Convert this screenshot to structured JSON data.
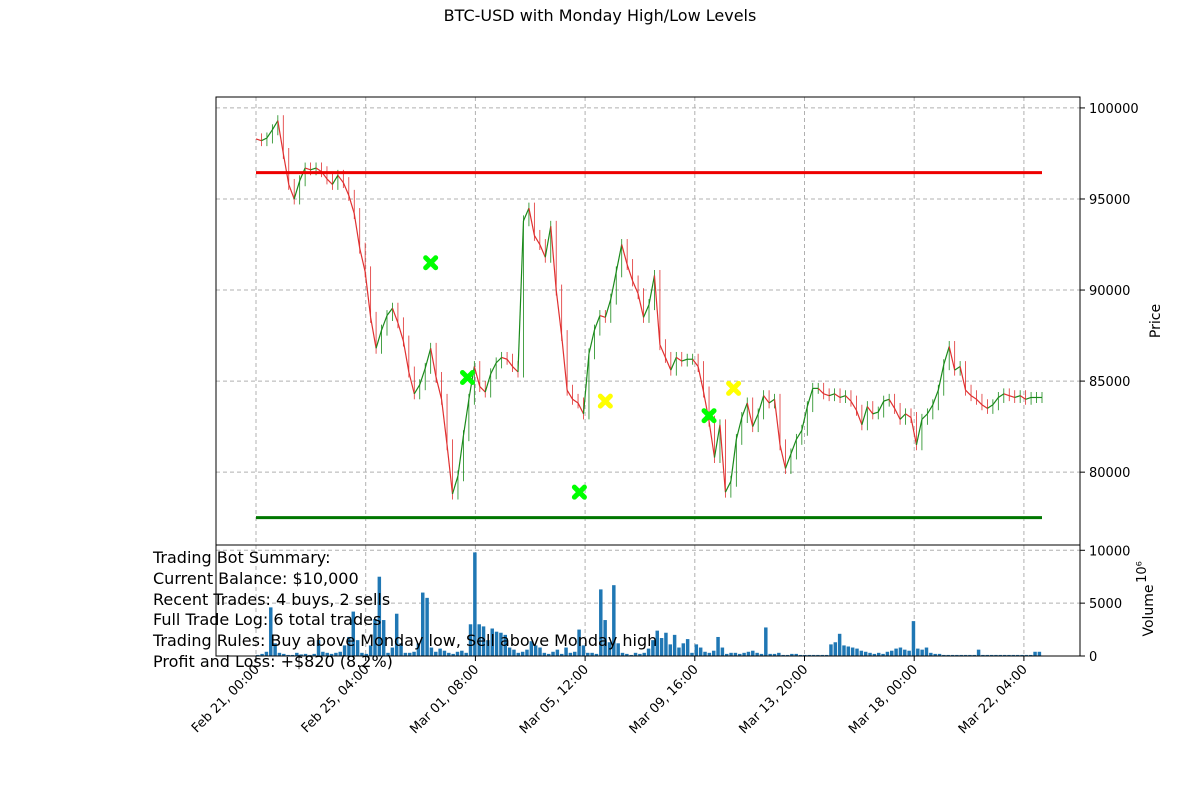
{
  "chart_data": {
    "type": "candlestick",
    "title": "BTC-USD with Monday High/Low Levels",
    "x_tick_labels": [
      "Feb 21, 00:00",
      "Feb 25, 04:00",
      "Mar 01, 08:00",
      "Mar 05, 12:00",
      "Mar 09, 16:00",
      "Mar 13, 20:00",
      "Mar 18, 00:00",
      "Mar 22, 04:00"
    ],
    "price_panel": {
      "ylabel": "Price",
      "ylim": [
        76000,
        100600
      ],
      "yticks": [
        80000,
        85000,
        90000,
        95000,
        100000
      ],
      "grid": true,
      "series": [
        {
          "x": [
            0,
            0.2,
            0.4,
            0.6,
            0.8,
            1.0,
            1.2,
            1.4,
            1.6,
            1.8,
            2.0,
            2.2,
            2.4,
            2.6,
            2.8,
            3.0,
            3.2,
            3.4,
            3.6,
            3.8,
            4.0,
            4.2,
            4.4,
            4.6,
            4.8,
            5.0,
            5.2,
            5.4,
            5.6,
            5.8,
            6.0,
            6.2,
            6.4,
            6.6,
            6.8,
            7.0,
            7.2,
            7.4,
            7.6,
            7.8,
            8.0,
            8.2,
            8.4,
            8.6,
            8.8,
            9.0,
            9.2,
            9.4,
            9.6,
            9.8,
            10.0,
            10.2,
            10.4,
            10.6,
            10.8,
            11.0,
            11.2,
            11.4,
            11.6,
            11.8,
            12.0,
            12.2,
            12.4,
            12.6,
            12.8,
            13.0,
            13.2,
            13.4,
            13.6,
            13.8,
            14.0,
            14.2,
            14.4,
            14.6,
            14.8,
            15.0,
            15.2,
            15.4,
            15.6,
            15.8,
            16.0,
            16.2,
            16.4,
            16.6,
            16.8,
            17.0,
            17.2,
            17.4,
            17.6,
            17.8,
            18.0,
            18.2,
            18.4,
            18.6,
            18.8,
            19.0,
            19.2,
            19.4,
            19.6,
            19.8,
            20.0,
            20.2,
            20.4,
            20.6,
            20.8,
            21.0,
            21.2,
            21.4,
            21.6,
            21.8,
            22.0,
            22.2,
            22.4,
            22.6,
            22.8,
            23.0,
            23.2,
            23.4,
            23.6,
            23.8,
            24.0,
            24.2,
            24.4,
            24.6,
            24.8,
            25.0,
            25.2,
            25.4,
            25.6,
            25.8,
            26.0,
            26.2,
            26.4,
            26.6,
            26.8,
            27.0,
            27.2,
            27.4,
            27.6,
            27.8,
            28.0,
            28.2,
            28.4,
            28.6,
            28.8
          ],
          "y": [
            98300,
            98200,
            98350,
            98800,
            99300,
            97500,
            95800,
            95000,
            96000,
            96700,
            96600,
            96700,
            96500,
            96100,
            95800,
            96300,
            95900,
            95200,
            94200,
            92300,
            91000,
            88500,
            86800,
            87800,
            88600,
            89000,
            88200,
            87200,
            85500,
            84300,
            84800,
            85700,
            86800,
            85200,
            84000,
            81500,
            78800,
            79800,
            82000,
            84000,
            85800,
            84700,
            84400,
            85400,
            86000,
            86300,
            86200,
            85800,
            85500,
            93800,
            94500,
            93000,
            92500,
            91800,
            93500,
            90000,
            87500,
            84500,
            84000,
            83800,
            83200,
            86500,
            87800,
            88600,
            88500,
            89500,
            91000,
            92500,
            91400,
            90500,
            89800,
            88500,
            89200,
            90800,
            87000,
            86300,
            85600,
            86300,
            86100,
            86200,
            86200,
            85800,
            84400,
            82800,
            80800,
            82600,
            78900,
            79500,
            81800,
            83000,
            83800,
            82500,
            83200,
            84200,
            83800,
            84000,
            81500,
            80200,
            81000,
            81800,
            82300,
            83600,
            84600,
            84600,
            84300,
            84200,
            84300,
            84100,
            84200,
            83900,
            83400,
            82600,
            83600,
            83200,
            83300,
            83900,
            84000,
            83500,
            82900,
            83200,
            83000,
            81500,
            82900,
            83200,
            83700,
            84500,
            85900,
            86900,
            85600,
            85800,
            84500,
            84200,
            84000,
            83700,
            83500,
            83700,
            84100,
            84300,
            84200,
            84100,
            84200,
            84000,
            84100,
            84100,
            84100
          ]
        }
      ],
      "hlines": [
        {
          "y": 96450,
          "color": "#ee0000",
          "label": "Monday High"
        },
        {
          "y": 77500,
          "color": "#007700",
          "label": "Monday Low"
        }
      ],
      "markers": {
        "buy": {
          "color": "#00ff00",
          "points": [
            {
              "x": 6.4,
              "y": 91500
            },
            {
              "x": 7.75,
              "y": 85200
            },
            {
              "x": 11.85,
              "y": 78900
            },
            {
              "x": 16.6,
              "y": 83100
            }
          ]
        },
        "sell": {
          "color": "#ffff00",
          "points": [
            {
              "x": 12.8,
              "y": 83900
            },
            {
              "x": 17.5,
              "y": 84600
            }
          ]
        }
      }
    },
    "volume_panel": {
      "ylabel": "Volume",
      "ylabel_exponent": "10⁶",
      "ylim": [
        0,
        10500
      ],
      "yticks": [
        0,
        5000,
        10000
      ],
      "grid": true,
      "bar_color": "#1f77b4",
      "values": [
        100,
        200,
        400,
        4600,
        1200,
        300,
        200,
        100,
        100,
        300,
        150,
        200,
        100,
        200,
        1500,
        400,
        300,
        200,
        300,
        400,
        1000,
        1800,
        4200,
        1500,
        300,
        200,
        1000,
        3500,
        7500,
        3400,
        300,
        800,
        4000,
        1200,
        300,
        300,
        400,
        1200,
        6000,
        5500,
        800,
        400,
        700,
        500,
        300,
        200,
        400,
        500,
        300,
        3000,
        9800,
        3000,
        2800,
        1500,
        2600,
        2300,
        2200,
        2000,
        800,
        600,
        300,
        400,
        600,
        1400,
        1000,
        800,
        300,
        200,
        400,
        600,
        200,
        800,
        300,
        400,
        2500,
        1000,
        300,
        300,
        200,
        6300,
        3400,
        1300,
        6700,
        1200,
        300,
        200,
        100,
        300,
        200,
        300,
        700,
        1500,
        2400,
        1700,
        2200,
        1100,
        2000,
        800,
        1200,
        1600,
        300,
        1100,
        800,
        400,
        300,
        500,
        1800,
        800,
        200,
        300,
        300,
        200,
        300,
        400,
        500,
        300,
        200,
        2700,
        200,
        200,
        300,
        100,
        100,
        200,
        200,
        100,
        100,
        100,
        100,
        100,
        100,
        100,
        1100,
        1300,
        2100,
        1000,
        900,
        800,
        700,
        500,
        400,
        300,
        200,
        300,
        200,
        400,
        500,
        700,
        800,
        600,
        500,
        3300,
        700,
        600,
        800,
        300,
        200,
        200,
        100,
        100,
        100,
        100,
        100,
        100,
        100,
        100,
        600,
        100,
        100,
        100,
        100,
        100,
        100,
        100,
        100,
        100,
        100,
        100,
        100,
        400,
        400
      ]
    }
  },
  "summary": {
    "heading": "Trading Bot Summary:",
    "balance": "Current Balance: $10,000",
    "recent": "Recent Trades: 4 buys, 2 sells",
    "log": "Full Trade Log: 6 total trades",
    "rules": "Trading Rules: Buy above Monday low, Sell above Monday high",
    "pnl": "Profit and Loss: +$820 (8.2%)"
  }
}
